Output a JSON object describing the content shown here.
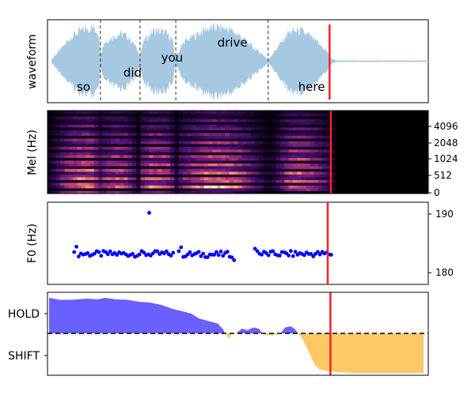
{
  "chart_data": [
    {
      "panel": "waveform",
      "type": "area",
      "ylabel": "waveform",
      "color": "#a6c8e0",
      "x_range": [
        0,
        1
      ],
      "word_labels": [
        {
          "text": "so",
          "x": 0.06
        },
        {
          "text": "did",
          "x": 0.19
        },
        {
          "text": "you",
          "x": 0.295
        },
        {
          "text": "drive",
          "x": 0.455
        },
        {
          "text": "here",
          "x": 0.665
        }
      ],
      "word_boundaries": [
        0.13,
        0.235,
        0.33,
        0.575
      ],
      "current_position": 0.738,
      "envelope": [
        [
          0.0,
          0.04
        ],
        [
          0.01,
          0.18
        ],
        [
          0.025,
          0.35
        ],
        [
          0.04,
          0.55
        ],
        [
          0.055,
          0.75
        ],
        [
          0.07,
          0.85
        ],
        [
          0.09,
          0.95
        ],
        [
          0.11,
          1.0
        ],
        [
          0.125,
          0.85
        ],
        [
          0.13,
          0.2
        ],
        [
          0.14,
          0.55
        ],
        [
          0.16,
          0.7
        ],
        [
          0.18,
          0.8
        ],
        [
          0.2,
          0.75
        ],
        [
          0.22,
          0.5
        ],
        [
          0.235,
          0.15
        ],
        [
          0.245,
          0.6
        ],
        [
          0.27,
          0.9
        ],
        [
          0.3,
          0.85
        ],
        [
          0.32,
          0.65
        ],
        [
          0.33,
          0.1
        ],
        [
          0.35,
          0.55
        ],
        [
          0.38,
          0.75
        ],
        [
          0.41,
          0.95
        ],
        [
          0.44,
          1.0
        ],
        [
          0.47,
          0.95
        ],
        [
          0.5,
          0.75
        ],
        [
          0.53,
          0.45
        ],
        [
          0.56,
          0.2
        ],
        [
          0.575,
          0.05
        ],
        [
          0.6,
          0.4
        ],
        [
          0.63,
          0.85
        ],
        [
          0.66,
          0.9
        ],
        [
          0.69,
          0.7
        ],
        [
          0.71,
          0.5
        ],
        [
          0.73,
          0.3
        ],
        [
          0.745,
          0.06
        ],
        [
          0.76,
          0.02
        ],
        [
          1.0,
          0.02
        ]
      ]
    },
    {
      "panel": "mel",
      "type": "heatmap",
      "ylabel": "Mel (Hz)",
      "colormap": "magma",
      "y_ticks": [
        "0",
        "512",
        "1024",
        "2048",
        "4096"
      ],
      "speech_end": 0.755,
      "current_position": 0.738
    },
    {
      "panel": "f0",
      "type": "scatter",
      "ylabel": "F0 (Hz)",
      "color": "#0000ff",
      "ylim": [
        178,
        192
      ],
      "y_ticks": [
        180,
        190
      ],
      "current_position": 0.738,
      "segments": [
        {
          "start": 0.07,
          "end": 0.33,
          "value": 183.2
        },
        {
          "start": 0.345,
          "end": 0.49,
          "value": 183.1
        },
        {
          "start": 0.545,
          "end": 0.745,
          "value": 183.2
        }
      ],
      "outliers": [
        {
          "x": 0.34,
          "y": 190.2
        }
      ]
    },
    {
      "panel": "turn",
      "type": "area",
      "y_ticks": [
        "HOLD",
        "SHIFT"
      ],
      "hold_color": "#6a5fff",
      "shift_color": "#ffc866",
      "baseline_style": "dashed",
      "current_position": 0.745,
      "curve": [
        [
          0.0,
          0.9
        ],
        [
          0.03,
          0.85
        ],
        [
          0.06,
          0.85
        ],
        [
          0.1,
          0.88
        ],
        [
          0.13,
          0.86
        ],
        [
          0.15,
          0.9
        ],
        [
          0.18,
          0.86
        ],
        [
          0.21,
          0.85
        ],
        [
          0.24,
          0.8
        ],
        [
          0.27,
          0.78
        ],
        [
          0.3,
          0.72
        ],
        [
          0.33,
          0.62
        ],
        [
          0.36,
          0.55
        ],
        [
          0.38,
          0.5
        ],
        [
          0.4,
          0.38
        ],
        [
          0.43,
          0.3
        ],
        [
          0.45,
          0.25
        ],
        [
          0.465,
          0.1
        ],
        [
          0.47,
          0.0
        ],
        [
          0.475,
          -0.05
        ],
        [
          0.48,
          -0.15
        ],
        [
          0.485,
          -0.05
        ],
        [
          0.49,
          0.0
        ],
        [
          0.5,
          0.0
        ],
        [
          0.515,
          0.12
        ],
        [
          0.53,
          0.08
        ],
        [
          0.545,
          0.15
        ],
        [
          0.56,
          0.12
        ],
        [
          0.57,
          0.0
        ],
        [
          0.58,
          -0.05
        ],
        [
          0.6,
          -0.05
        ],
        [
          0.61,
          0.0
        ],
        [
          0.62,
          0.02
        ],
        [
          0.63,
          0.15
        ],
        [
          0.645,
          0.18
        ],
        [
          0.655,
          0.12
        ],
        [
          0.665,
          0.0
        ],
        [
          0.67,
          -0.05
        ],
        [
          0.68,
          -0.2
        ],
        [
          0.69,
          -0.4
        ],
        [
          0.7,
          -0.6
        ],
        [
          0.71,
          -0.8
        ],
        [
          0.72,
          -0.9
        ],
        [
          0.74,
          -0.95
        ],
        [
          0.77,
          -0.98
        ],
        [
          0.8,
          -1.0
        ],
        [
          0.85,
          -1.0
        ],
        [
          0.9,
          -1.0
        ],
        [
          1.0,
          -1.0
        ]
      ]
    }
  ]
}
